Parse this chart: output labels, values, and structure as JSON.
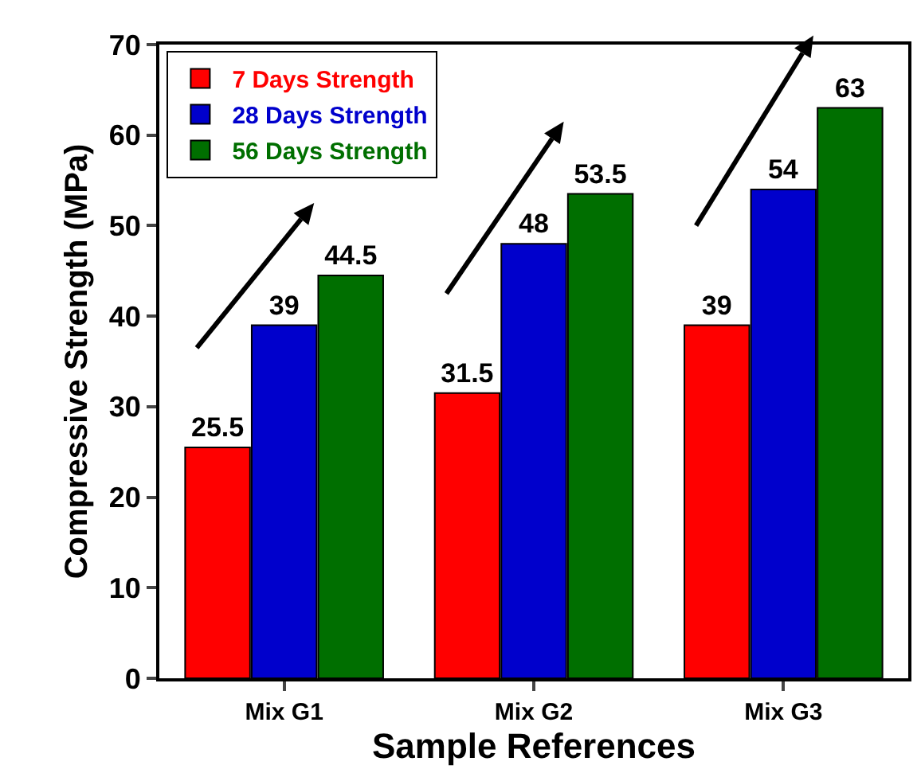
{
  "chart_data": {
    "type": "bar",
    "xlabel": "Sample References",
    "ylabel": "Compressive Strength (MPa)",
    "categories": [
      "Mix G1",
      "Mix G2",
      "Mix G3"
    ],
    "series": [
      {
        "name": "7 Days Strength",
        "color": "#ff0000",
        "values": [
          25.5,
          31.5,
          39
        ]
      },
      {
        "name": "28 Days Strength",
        "color": "#0000cc",
        "values": [
          39,
          48,
          54
        ]
      },
      {
        "name": "56 Days Strength",
        "color": "#006f00",
        "values": [
          44.5,
          53.5,
          63
        ]
      }
    ],
    "ylim": [
      0,
      70
    ],
    "yticks": [
      0,
      10,
      20,
      30,
      40,
      50,
      60,
      70
    ],
    "grid": false,
    "legend": "top left",
    "data_labels": true
  }
}
